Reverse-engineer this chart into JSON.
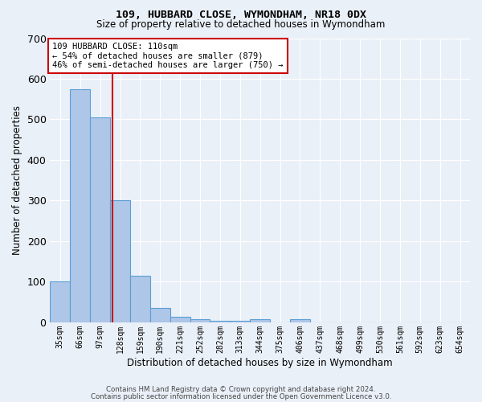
{
  "title": "109, HUBBARD CLOSE, WYMONDHAM, NR18 0DX",
  "subtitle": "Size of property relative to detached houses in Wymondham",
  "xlabel": "Distribution of detached houses by size in Wymondham",
  "ylabel": "Number of detached properties",
  "categories": [
    "35sqm",
    "66sqm",
    "97sqm",
    "128sqm",
    "159sqm",
    "190sqm",
    "221sqm",
    "252sqm",
    "282sqm",
    "313sqm",
    "344sqm",
    "375sqm",
    "406sqm",
    "437sqm",
    "468sqm",
    "499sqm",
    "530sqm",
    "561sqm",
    "592sqm",
    "623sqm",
    "654sqm"
  ],
  "bar_values": [
    100,
    575,
    505,
    300,
    115,
    35,
    13,
    7,
    3,
    3,
    7,
    0,
    7,
    0,
    0,
    0,
    0,
    0,
    0,
    0,
    0
  ],
  "bar_color": "#aec6e8",
  "bar_edge_color": "#5a9fd4",
  "annotation_text_line1": "109 HUBBARD CLOSE: 110sqm",
  "annotation_text_line2": "← 54% of detached houses are smaller (879)",
  "annotation_text_line3": "46% of semi-detached houses are larger (750) →",
  "annotation_box_color": "#ffffff",
  "annotation_box_edge": "#cc0000",
  "red_line_color": "#cc0000",
  "red_line_x": 2.63,
  "ylim": [
    0,
    700
  ],
  "yticks": [
    0,
    100,
    200,
    300,
    400,
    500,
    600,
    700
  ],
  "background_color": "#eaf0f8",
  "grid_color": "#ffffff",
  "footer_line1": "Contains HM Land Registry data © Crown copyright and database right 2024.",
  "footer_line2": "Contains public sector information licensed under the Open Government Licence v3.0."
}
